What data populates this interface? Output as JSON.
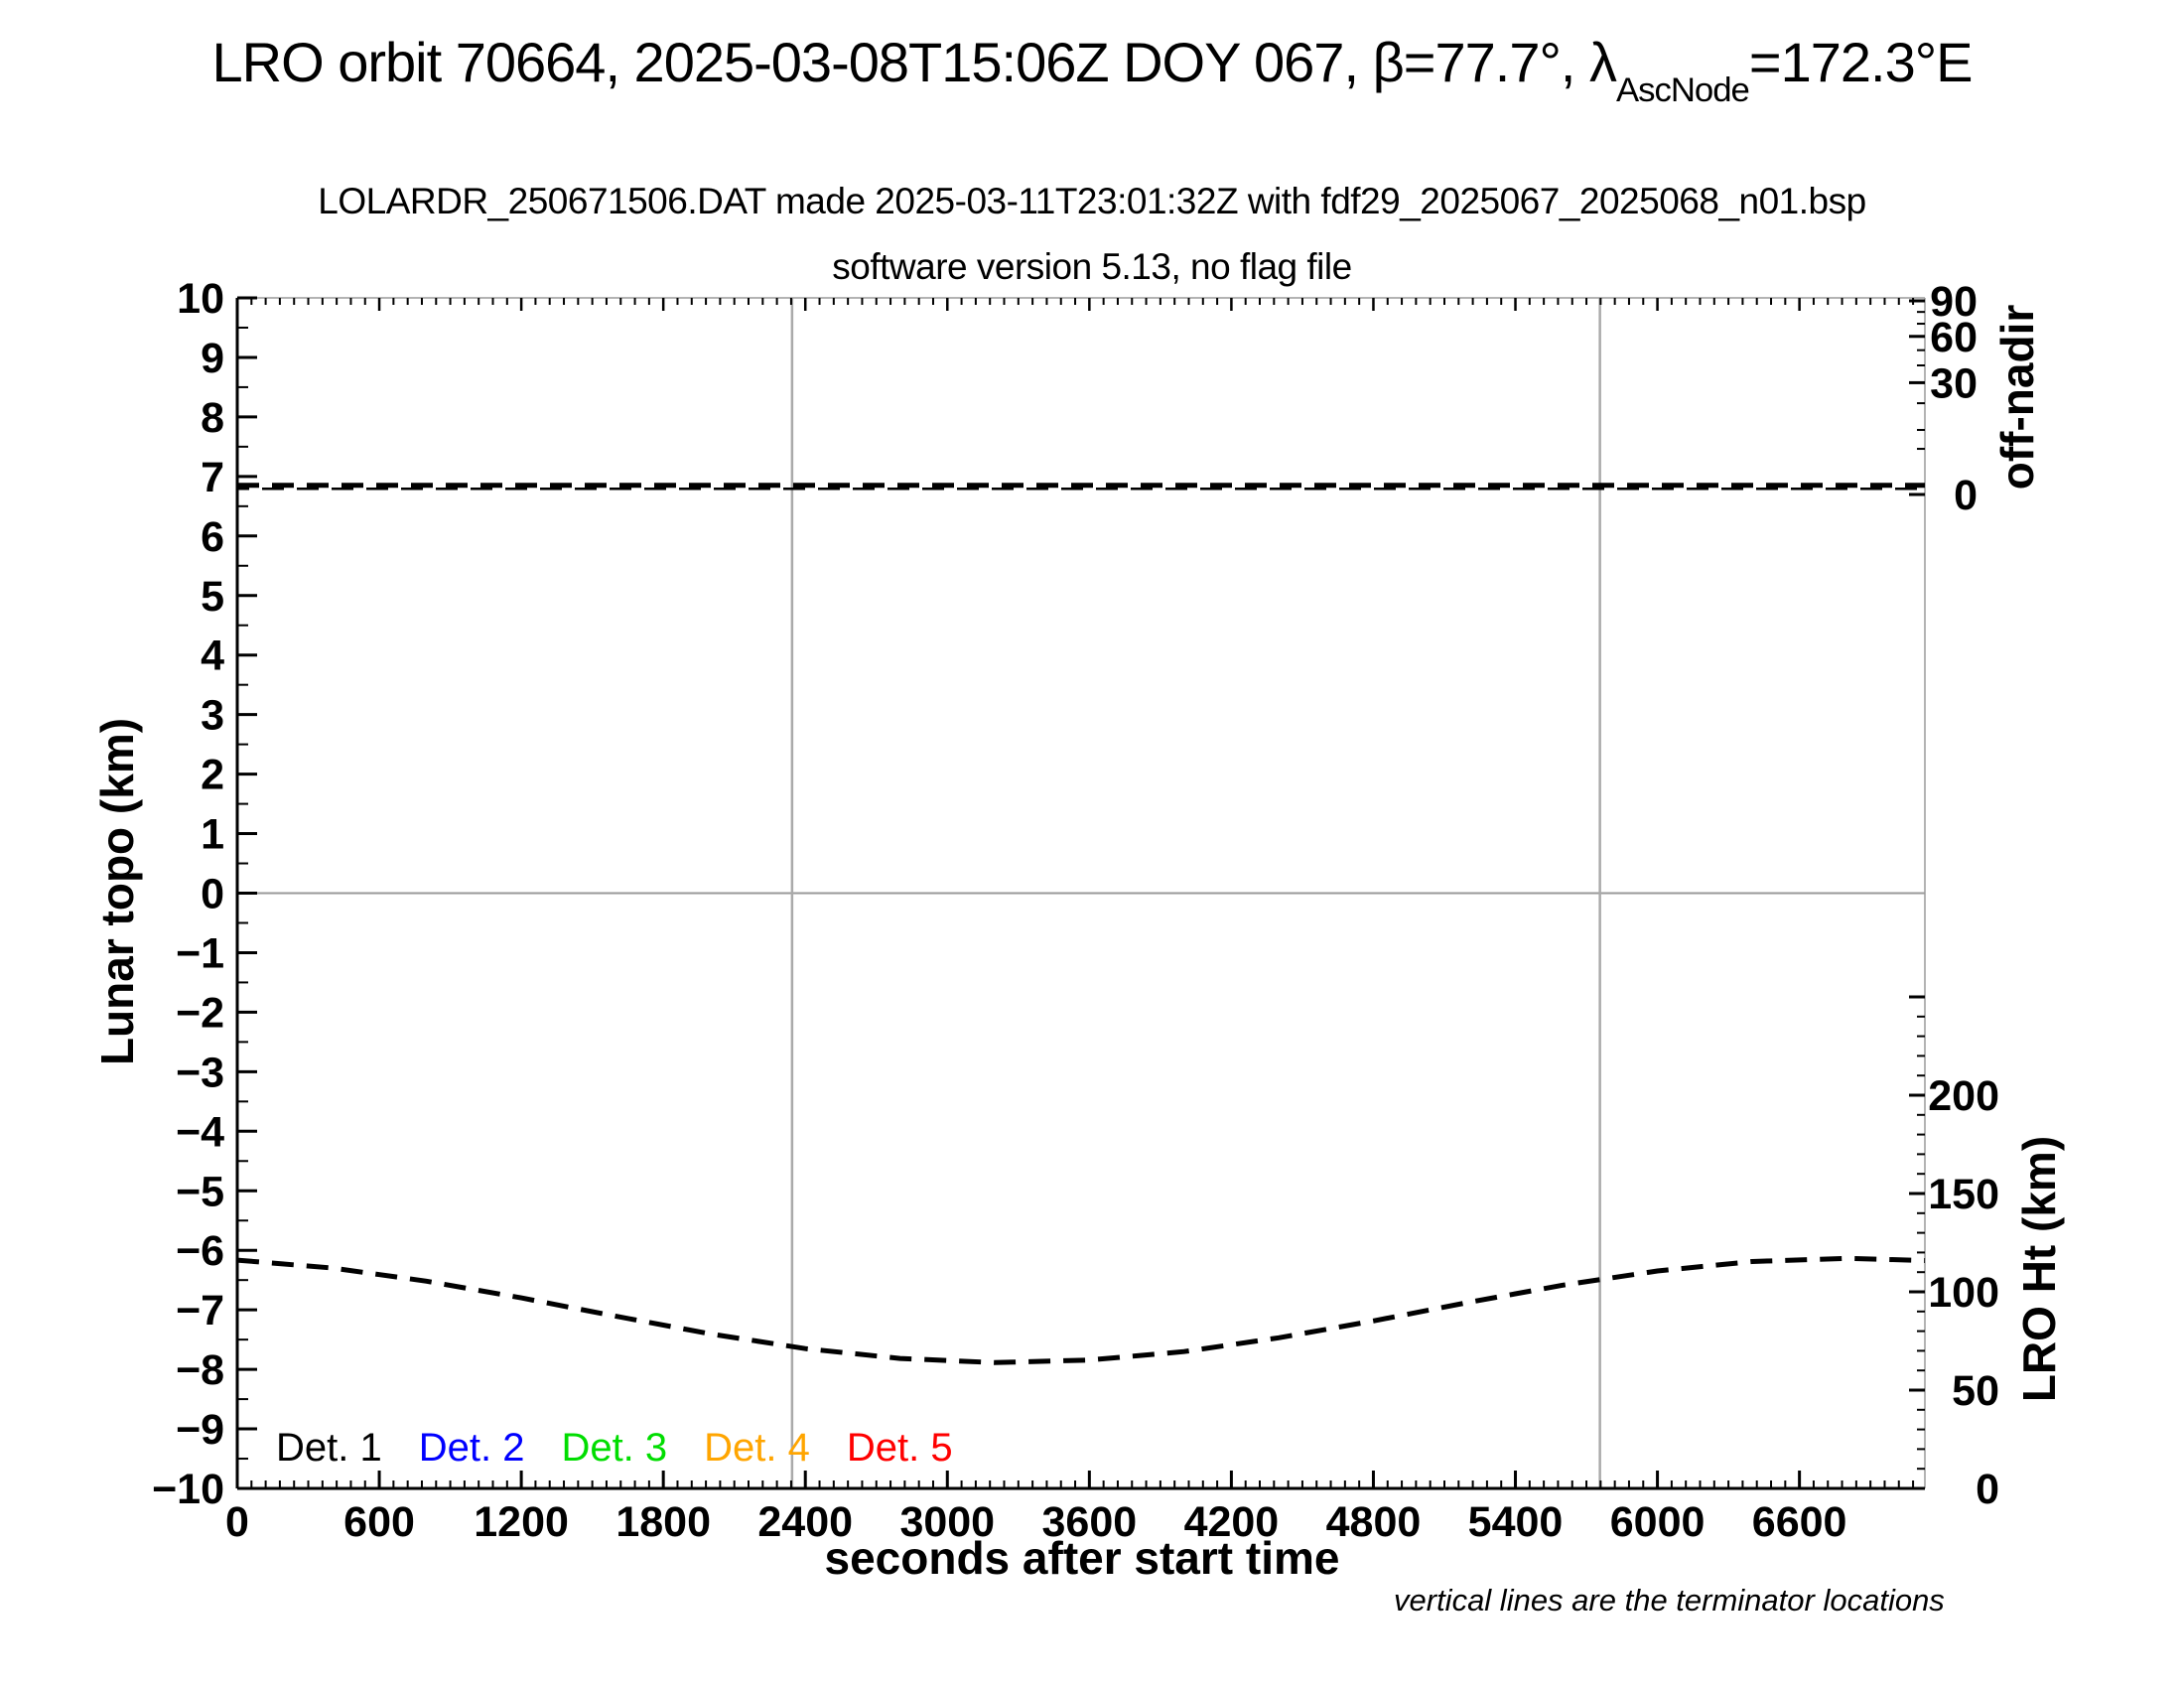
{
  "titles": {
    "main_pre": "LRO orbit 70664, 2025-03-08T15:06Z DOY 067, β=77.7°, λ",
    "main_sub": "AscNode",
    "main_post": "=172.3°E",
    "line2": "LOLARDR_250671506.DAT made 2025-03-11T23:01:32Z with fdf29_2025067_2025068_n01.bsp",
    "line3": "software version 5.13, no flag file"
  },
  "colors": {
    "axis": "#000000",
    "box_light": "#9a9a9a",
    "terminator_line": "#aaaaaa",
    "zero_line": "#999999",
    "curve": "#000000"
  },
  "axes": {
    "x": {
      "title": "seconds after start time",
      "range": [
        0,
        7130
      ],
      "major_ticks": [
        0,
        600,
        1200,
        1800,
        2400,
        3000,
        3600,
        4200,
        4800,
        5400,
        6000,
        6600
      ],
      "minor_step": 60
    },
    "y_left": {
      "title": "Lunar topo (km)",
      "range": [
        -10,
        10
      ],
      "major_ticks": [
        {
          "v": 10,
          "label": "10"
        },
        {
          "v": 9,
          "label": "9"
        },
        {
          "v": 8,
          "label": "8"
        },
        {
          "v": 7,
          "label": "7"
        },
        {
          "v": 6,
          "label": "6"
        },
        {
          "v": 5,
          "label": "5"
        },
        {
          "v": 4,
          "label": "4"
        },
        {
          "v": 3,
          "label": "3"
        },
        {
          "v": 2,
          "label": "2"
        },
        {
          "v": 1,
          "label": "1"
        },
        {
          "v": 0,
          "label": "0"
        },
        {
          "v": -1,
          "label": "−1"
        },
        {
          "v": -2,
          "label": "−2"
        },
        {
          "v": -3,
          "label": "−3"
        },
        {
          "v": -4,
          "label": "−4"
        },
        {
          "v": -5,
          "label": "−5"
        },
        {
          "v": -6,
          "label": "−6"
        },
        {
          "v": -7,
          "label": "−7"
        },
        {
          "v": -8,
          "label": "−8"
        },
        {
          "v": -9,
          "label": "−9"
        },
        {
          "v": -10,
          "label": "−10"
        }
      ],
      "minor_step": 0.5
    },
    "y_right_top": {
      "title": "off-nadir",
      "scale": "sqrt",
      "range": [
        0,
        90
      ],
      "major_ticks": [
        {
          "v": 90,
          "label": "90"
        },
        {
          "v": 60,
          "label": "60"
        },
        {
          "v": 30,
          "label": "30"
        },
        {
          "v": 0,
          "label": "0"
        }
      ],
      "minor_ticks": [
        80,
        70,
        50,
        40,
        20,
        10,
        5
      ]
    },
    "y_right_bottom": {
      "title": "LRO Ht (km)",
      "range": [
        0,
        250
      ],
      "major_ticks": [
        {
          "v": 250,
          "label": ""
        },
        {
          "v": 200,
          "label": "200"
        },
        {
          "v": 150,
          "label": "150"
        },
        {
          "v": 100,
          "label": "100"
        },
        {
          "v": 50,
          "label": "50"
        },
        {
          "v": 0,
          "label": "0"
        }
      ],
      "minor_step": 10
    }
  },
  "legend": {
    "items": [
      {
        "label": "Det. 1",
        "color": "#000000"
      },
      {
        "label": "Det. 2",
        "color": "#0000ff"
      },
      {
        "label": "Det. 3",
        "color": "#00dd00"
      },
      {
        "label": "Det. 4",
        "color": "#ffa500"
      },
      {
        "label": "Det. 5",
        "color": "#ff0000"
      }
    ]
  },
  "footnote": "vertical lines are the terminator locations",
  "chart_data": {
    "type": "line",
    "title": "LRO orbit 70664 LOLA RDR pass summary",
    "xlabel": "seconds after start time",
    "ylabel_left": "Lunar topo (km)",
    "ylabel_right_top": "off-nadir",
    "ylabel_right_bottom": "LRO Ht (km)",
    "x_range": [
      0,
      7130
    ],
    "y_left_range": [
      -10,
      10
    ],
    "grid": false,
    "legend_position": "bottom-left inside",
    "terminator_lines_x_seconds": [
      2344,
      5757
    ],
    "horizontal_zero_line": 0,
    "series": [
      {
        "name": "off-nadir angle (Det. 1-5 overlapping)",
        "axis": "y_right_top",
        "unit": "deg",
        "style": "dashed",
        "color": "#000000",
        "x": [
          0,
          7130
        ],
        "y": [
          0.2,
          0.2
        ]
      },
      {
        "name": "LRO height",
        "axis": "y_right_bottom",
        "unit": "km",
        "style": "dashed",
        "color": "#000000",
        "x": [
          0,
          400,
          800,
          1200,
          1600,
          2000,
          2400,
          2800,
          3200,
          3600,
          4000,
          4400,
          4800,
          5200,
          5600,
          6000,
          6400,
          6800,
          7130
        ],
        "y": [
          116.1,
          112.1,
          105.4,
          96.9,
          87.6,
          78.6,
          71.1,
          66.1,
          64.0,
          65.3,
          69.6,
          76.6,
          85.2,
          94.6,
          103.4,
          110.6,
          115.4,
          117.0,
          115.9
        ]
      }
    ]
  }
}
